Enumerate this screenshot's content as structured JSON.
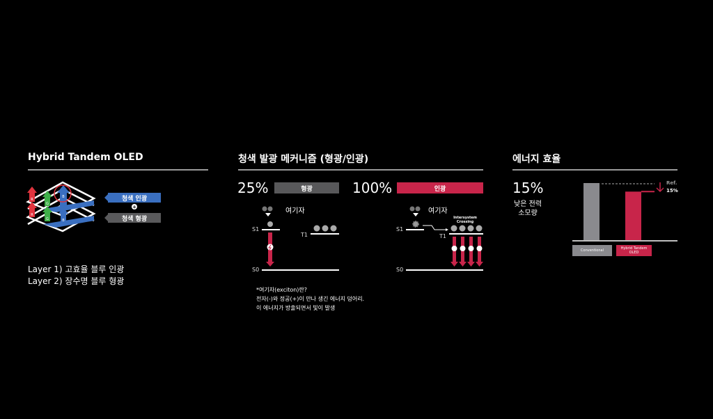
{
  "left": {
    "title": "Hybrid Tandem OLED",
    "blue_tag": "청색 인광",
    "gray_tag": "청색 형광",
    "layer_letters": [
      "R",
      "G",
      "B"
    ],
    "layers": [
      "Layer 1)  고효율 블루 인광",
      "Layer 2)  장수명 블루 형광"
    ],
    "colors": {
      "red": "#e0343e",
      "green": "#3fae49",
      "blue": "#3a6fc0",
      "gray": "#5a5a5c"
    }
  },
  "middle": {
    "title": "청색 발광 메커니즘 (형광/인광)",
    "fluor": {
      "pct": "25%",
      "label": "형광",
      "exciton": "여기자",
      "s1": "S1",
      "t1": "T1",
      "s0": "S0"
    },
    "phos": {
      "pct": "100%",
      "label": "인광",
      "exciton": "여기자",
      "s1": "S1",
      "t1": "T1",
      "s0": "S0",
      "isc": [
        "Intersystem",
        "Crossing"
      ]
    },
    "note": [
      "*여기자(exciton)란?",
      "전자(-)와 정공(+)이 만나 생긴 에너지 덩어리.",
      "이 에너지가 방출되면서 빛이 발생"
    ],
    "colors": {
      "gray": "#58585a",
      "red": "#c8254a"
    }
  },
  "right": {
    "title": "에너지 효율",
    "pct": "15%",
    "desc": [
      "낮은 전력",
      "소모량"
    ],
    "ref": [
      "Ref.",
      "15%"
    ]
  },
  "chart_data": {
    "type": "bar",
    "categories": [
      "Conventional",
      "Hybrid Tandem OLED"
    ],
    "values": [
      100,
      85
    ],
    "colors": [
      "#8a8a8e",
      "#c8254a"
    ]
  }
}
